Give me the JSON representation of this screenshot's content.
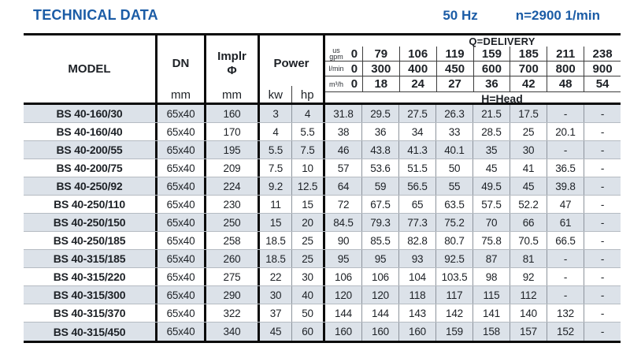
{
  "header_bar": {
    "title": "TECHNICAL DATA",
    "frequency": "50 Hz",
    "speed": "n=2900 1/min"
  },
  "table": {
    "model_label": "MODEL",
    "dn_label": "DN",
    "implr_label_1": "Implr",
    "implr_label_2": "Φ",
    "power_label": "Power",
    "mm_unit": "mm",
    "kw_unit": "kw",
    "hp_unit": "hp",
    "delivery_title": "Q=DELIVERY",
    "head_label": "H=Head",
    "unit_rows": [
      {
        "id": "us-gpm",
        "label_lines": [
          "us",
          "gpm"
        ],
        "values": [
          "0",
          "79",
          "106",
          "119",
          "159",
          "185",
          "211",
          "238"
        ]
      },
      {
        "id": "l-min",
        "label_lines": [
          "l/min"
        ],
        "values": [
          "0",
          "300",
          "400",
          "450",
          "600",
          "700",
          "800",
          "900"
        ]
      },
      {
        "id": "m3-h",
        "label_lines": [
          "m³/h"
        ],
        "values": [
          "0",
          "18",
          "24",
          "27",
          "36",
          "42",
          "48",
          "54"
        ]
      }
    ],
    "rows": [
      {
        "model": "BS 40-160/30",
        "dn": "65x40",
        "implr": "160",
        "kw": "3",
        "hp": "4",
        "head": [
          "31.8",
          "29.5",
          "27.5",
          "26.3",
          "21.5",
          "17.5",
          "-",
          "-"
        ]
      },
      {
        "model": "BS 40-160/40",
        "dn": "65x40",
        "implr": "170",
        "kw": "4",
        "hp": "5.5",
        "head": [
          "38",
          "36",
          "34",
          "33",
          "28.5",
          "25",
          "20.1",
          "-"
        ]
      },
      {
        "model": "BS 40-200/55",
        "dn": "65x40",
        "implr": "195",
        "kw": "5.5",
        "hp": "7.5",
        "head": [
          "46",
          "43.8",
          "41.3",
          "40.1",
          "35",
          "30",
          "-",
          "-"
        ]
      },
      {
        "model": "BS 40-200/75",
        "dn": "65x40",
        "implr": "209",
        "kw": "7.5",
        "hp": "10",
        "head": [
          "57",
          "53.6",
          "51.5",
          "50",
          "45",
          "41",
          "36.5",
          "-"
        ]
      },
      {
        "model": "BS 40-250/92",
        "dn": "65x40",
        "implr": "224",
        "kw": "9.2",
        "hp": "12.5",
        "head": [
          "64",
          "59",
          "56.5",
          "55",
          "49.5",
          "45",
          "39.8",
          "-"
        ]
      },
      {
        "model": "BS 40-250/110",
        "dn": "65x40",
        "implr": "230",
        "kw": "11",
        "hp": "15",
        "head": [
          "72",
          "67.5",
          "65",
          "63.5",
          "57.5",
          "52.2",
          "47",
          "-"
        ]
      },
      {
        "model": "BS 40-250/150",
        "dn": "65x40",
        "implr": "250",
        "kw": "15",
        "hp": "20",
        "head": [
          "84.5",
          "79.3",
          "77.3",
          "75.2",
          "70",
          "66",
          "61",
          "-"
        ]
      },
      {
        "model": "BS 40-250/185",
        "dn": "65x40",
        "implr": "258",
        "kw": "18.5",
        "hp": "25",
        "head": [
          "90",
          "85.5",
          "82.8",
          "80.7",
          "75.8",
          "70.5",
          "66.5",
          "-"
        ]
      },
      {
        "model": "BS 40-315/185",
        "dn": "65x40",
        "implr": "260",
        "kw": "18.5",
        "hp": "25",
        "head": [
          "95",
          "95",
          "93",
          "92.5",
          "87",
          "81",
          "-",
          "-"
        ]
      },
      {
        "model": "BS 40-315/220",
        "dn": "65x40",
        "implr": "275",
        "kw": "22",
        "hp": "30",
        "head": [
          "106",
          "106",
          "104",
          "103.5",
          "98",
          "92",
          "-",
          "-"
        ]
      },
      {
        "model": "BS 40-315/300",
        "dn": "65x40",
        "implr": "290",
        "kw": "30",
        "hp": "40",
        "head": [
          "120",
          "120",
          "118",
          "117",
          "115",
          "112",
          "-",
          "-"
        ]
      },
      {
        "model": "BS 40-315/370",
        "dn": "65x40",
        "implr": "322",
        "kw": "37",
        "hp": "50",
        "head": [
          "144",
          "144",
          "143",
          "142",
          "141",
          "140",
          "132",
          "-"
        ]
      },
      {
        "model": "BS 40-315/450",
        "dn": "65x40",
        "implr": "340",
        "kw": "45",
        "hp": "60",
        "head": [
          "160",
          "160",
          "160",
          "159",
          "158",
          "157",
          "152",
          "-"
        ]
      }
    ]
  },
  "colors": {
    "accent_blue": "#1b5ca6",
    "stripe": "#dce2e9",
    "border_black": "#0b0b0b"
  }
}
